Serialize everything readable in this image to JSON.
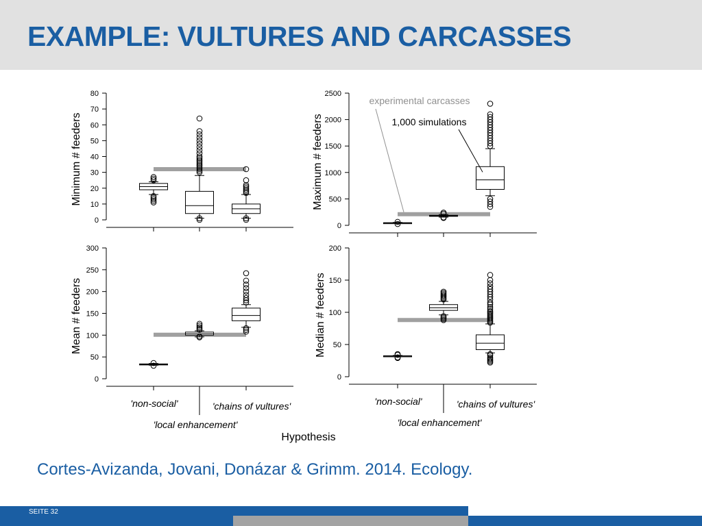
{
  "slide": {
    "title": "EXAMPLE: VULTURES AND CARCASSES",
    "citation": "Cortes-Avizanda, Jovani, Donázar & Grimm. 2014. Ecology.",
    "page_label": "SEITE 32",
    "colors": {
      "title": "#1a5ea3",
      "header_bg": "#e1e1e1",
      "footer": "#1a5ea3",
      "footer_gray": "#a3a3a3",
      "reference_bar": "#a0a0a0"
    }
  },
  "figure": {
    "xlabel": "Hypothesis",
    "groups": [
      "'non-social'",
      "'local enhancement'",
      "'chains of vultures'"
    ],
    "annotations": {
      "experimental": "experimental carcasses",
      "simulations": "1,000 simulations"
    }
  },
  "chart_data": [
    {
      "type": "box",
      "ylabel": "Minimum # feeders",
      "ylim": [
        0,
        80
      ],
      "yticks": [
        0,
        10,
        20,
        30,
        40,
        50,
        60,
        70,
        80
      ],
      "reference_line": {
        "value": 32,
        "label": "experimental carcasses"
      },
      "boxes": [
        {
          "group": "'non-social'",
          "whisker_low": 16,
          "q1": 19,
          "median": 21,
          "q3": 23,
          "whisker_high": 24,
          "outliers": [
            11,
            12,
            13,
            14,
            15,
            25,
            26,
            27
          ]
        },
        {
          "group": "'local enhancement'",
          "whisker_low": 1,
          "q1": 4,
          "median": 9,
          "q3": 18,
          "whisker_high": 28,
          "outliers": [
            0,
            1,
            30,
            31,
            32,
            33,
            34,
            35,
            36,
            37,
            38,
            39,
            40,
            42,
            44,
            46,
            48,
            50,
            52,
            54,
            56,
            64
          ]
        },
        {
          "group": "'chains of vultures'",
          "whisker_low": 1,
          "q1": 4,
          "median": 7,
          "q3": 10,
          "whisker_high": 16,
          "outliers": [
            0,
            1,
            17,
            18,
            19,
            20,
            21,
            22,
            25,
            32
          ]
        }
      ]
    },
    {
      "type": "box",
      "ylabel": "Maximum # feeders",
      "ylim": [
        0,
        2500
      ],
      "yticks": [
        0,
        500,
        1000,
        1500,
        2000,
        2500
      ],
      "reference_line": {
        "value": 210,
        "label": "experimental carcasses"
      },
      "boxes": [
        {
          "group": "'non-social'",
          "whisker_low": 35,
          "q1": 40,
          "median": 45,
          "q3": 50,
          "whisker_high": 55,
          "outliers": [
            25,
            65
          ]
        },
        {
          "group": "'local enhancement'",
          "whisker_low": 155,
          "q1": 170,
          "median": 180,
          "q3": 190,
          "whisker_high": 205,
          "outliers": [
            140,
            150,
            220,
            240
          ]
        },
        {
          "group": "'chains of vultures'",
          "whisker_low": 560,
          "q1": 680,
          "median": 860,
          "q3": 1110,
          "whisker_high": 1450,
          "outliers": [
            350,
            400,
            450,
            500,
            1500,
            1550,
            1600,
            1650,
            1700,
            1750,
            1800,
            1850,
            1900,
            1950,
            2000,
            2050,
            2100,
            2300
          ]
        }
      ]
    },
    {
      "type": "box",
      "ylabel": "Mean # feeders",
      "ylim": [
        0,
        300
      ],
      "yticks": [
        0,
        50,
        100,
        150,
        200,
        250,
        300
      ],
      "reference_line": {
        "value": 101,
        "label": "experimental carcasses"
      },
      "boxes": [
        {
          "group": "'non-social'",
          "whisker_low": 31,
          "q1": 32,
          "median": 33,
          "q3": 34,
          "whisker_high": 35,
          "outliers": [
            30,
            36
          ]
        },
        {
          "group": "'local enhancement'",
          "whisker_low": 96,
          "q1": 100,
          "median": 103,
          "q3": 107,
          "whisker_high": 110,
          "outliers": [
            95,
            97,
            112,
            115,
            118,
            122,
            126
          ]
        },
        {
          "group": "'chains of vultures'",
          "whisker_low": 118,
          "q1": 133,
          "median": 145,
          "q3": 162,
          "whisker_high": 170,
          "outliers": [
            108,
            112,
            116,
            175,
            180,
            185,
            192,
            200,
            208,
            216,
            225,
            242
          ]
        }
      ]
    },
    {
      "type": "box",
      "ylabel": "Median # feeders",
      "ylim": [
        0,
        200
      ],
      "yticks": [
        0,
        50,
        100,
        150,
        200
      ],
      "reference_line": {
        "value": 88,
        "label": "experimental carcasses"
      },
      "boxes": [
        {
          "group": "'non-social'",
          "whisker_low": 31,
          "q1": 31.5,
          "median": 32,
          "q3": 32.5,
          "whisker_high": 33,
          "outliers": [
            29,
            30,
            34,
            35
          ]
        },
        {
          "group": "'local enhancement'",
          "whisker_low": 96,
          "q1": 103,
          "median": 107,
          "q3": 112,
          "whisker_high": 117,
          "outliers": [
            88,
            90,
            92,
            94,
            120,
            122,
            124,
            126,
            128,
            130,
            132
          ]
        },
        {
          "group": "'chains of vultures'",
          "whisker_low": 37,
          "q1": 42,
          "median": 52,
          "q3": 65,
          "whisker_high": 82,
          "outliers": [
            22,
            24,
            26,
            28,
            30,
            33,
            35,
            84,
            86,
            88,
            90,
            92,
            94,
            96,
            98,
            100,
            102,
            105,
            108,
            112,
            115,
            120,
            124,
            128,
            132,
            136,
            140,
            145,
            150,
            158
          ]
        }
      ]
    }
  ]
}
